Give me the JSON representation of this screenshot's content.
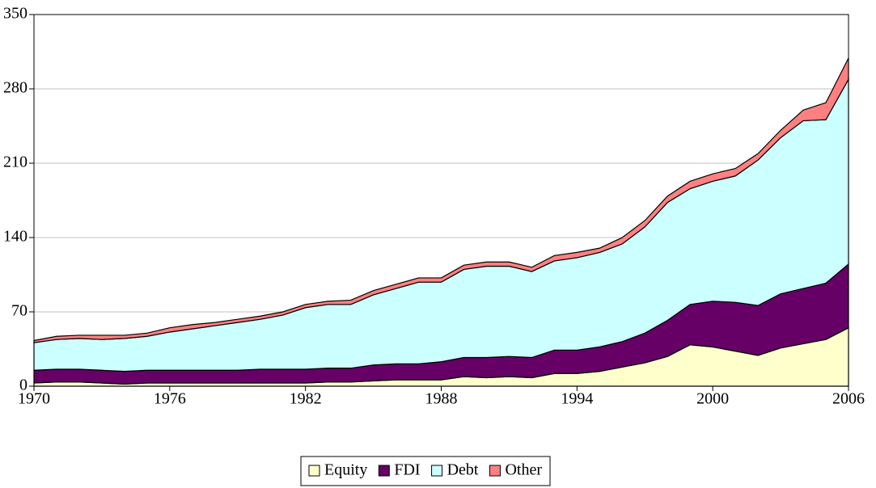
{
  "chart_data": {
    "type": "stacked_area",
    "x": [
      1970,
      1971,
      1972,
      1973,
      1974,
      1975,
      1976,
      1977,
      1978,
      1979,
      1980,
      1981,
      1982,
      1983,
      1984,
      1985,
      1986,
      1987,
      1988,
      1989,
      1990,
      1991,
      1992,
      1993,
      1994,
      1995,
      1996,
      1997,
      1998,
      1999,
      2000,
      2001,
      2002,
      2003,
      2004,
      2005,
      2006
    ],
    "series": [
      {
        "name": "Equity",
        "color": "#ffffcc",
        "values": [
          3,
          4,
          4,
          3,
          2,
          3,
          3,
          3,
          3,
          3,
          3,
          3,
          3,
          4,
          4,
          5,
          6,
          6,
          6,
          9,
          8,
          9,
          8,
          12,
          12,
          14,
          18,
          22,
          28,
          39,
          37,
          33,
          29,
          36,
          40,
          44,
          55
        ]
      },
      {
        "name": "FDI",
        "color": "#660066",
        "values": [
          12,
          12,
          12,
          12,
          12,
          12,
          12,
          12,
          12,
          12,
          13,
          13,
          13,
          13,
          13,
          15,
          15,
          15,
          17,
          18,
          19,
          19,
          19,
          22,
          22,
          23,
          24,
          28,
          34,
          38,
          43,
          46,
          47,
          51,
          52,
          53,
          60
        ]
      },
      {
        "name": "Debt",
        "color": "#ccffff",
        "values": [
          26,
          28,
          29,
          29,
          31,
          32,
          36,
          39,
          42,
          45,
          47,
          51,
          58,
          60,
          60,
          66,
          71,
          77,
          75,
          83,
          86,
          85,
          81,
          84,
          87,
          89,
          92,
          100,
          111,
          109,
          113,
          119,
          137,
          147,
          158,
          154,
          174
        ]
      },
      {
        "name": "Other",
        "color": "#ff8080",
        "values": [
          2,
          3,
          3,
          4,
          3,
          3,
          4,
          4,
          3,
          3,
          3,
          3,
          3,
          3,
          4,
          4,
          4,
          4,
          4,
          4,
          4,
          4,
          4,
          5,
          5,
          4,
          6,
          6,
          6,
          7,
          7,
          7,
          6,
          7,
          10,
          16,
          20
        ]
      }
    ],
    "xlim": [
      1970,
      2006
    ],
    "xticks": [
      1970,
      1976,
      1982,
      1988,
      1994,
      2000,
      2006
    ],
    "ylim": [
      0,
      350
    ],
    "yticks": [
      0,
      70,
      140,
      210,
      280,
      350
    ],
    "grid": true,
    "legend": "bottom"
  }
}
